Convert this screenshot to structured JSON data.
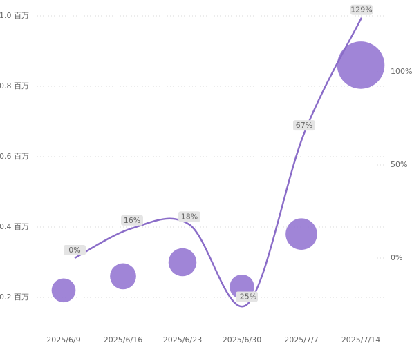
{
  "chart_data": {
    "type": "combo",
    "categories": [
      "2025/6/9",
      "2025/6/16",
      "2025/6/23",
      "2025/6/30",
      "2025/7/7",
      "2025/7/14"
    ],
    "ylim": [
      0.1,
      1.0
    ],
    "yticks": [
      {
        "value": 0.2,
        "label": "0.2 百万"
      },
      {
        "value": 0.4,
        "label": "0.4 百万"
      },
      {
        "value": 0.6,
        "label": "0.6 百万"
      },
      {
        "value": 0.8,
        "label": "0.8 百万"
      },
      {
        "value": 1.0,
        "label": "1.0 百万"
      }
    ],
    "y2lim": [
      -40,
      130
    ],
    "y2ticks": [
      {
        "value": 0,
        "label": "0%"
      },
      {
        "value": 50,
        "label": "50%"
      },
      {
        "value": 100,
        "label": "100%"
      }
    ],
    "grid": true,
    "series": [
      {
        "type": "bubble",
        "color": "#9678d3",
        "values": [
          0.22,
          0.26,
          0.3,
          0.23,
          0.38,
          0.86
        ]
      },
      {
        "type": "line",
        "axis": "y2",
        "color": "#8a6cc8",
        "values": [
          0,
          16,
          18,
          -25,
          67,
          129
        ],
        "value_labels": [
          "0%",
          "16%",
          "18%",
          "-25%",
          "67%",
          "129%"
        ]
      }
    ]
  }
}
